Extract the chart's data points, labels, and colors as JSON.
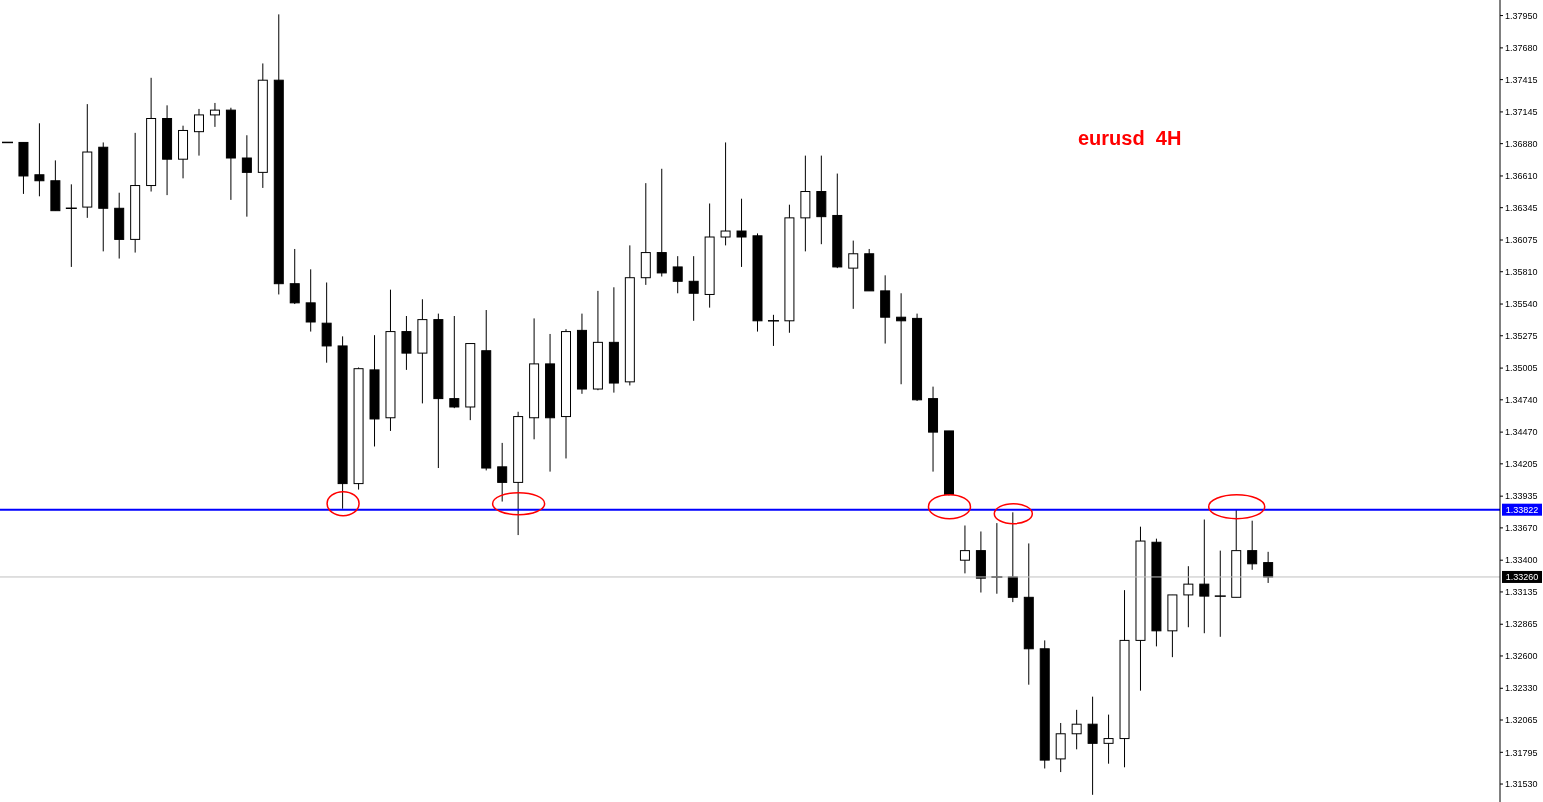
{
  "chart_data": {
    "type": "candlestick",
    "annotations": [
      "eurusd  4H"
    ],
    "categories": [
      null,
      null,
      null,
      null,
      null,
      null,
      null,
      null,
      null,
      null,
      null,
      null,
      null,
      null,
      null,
      null,
      null,
      null,
      null,
      null,
      null,
      null,
      null,
      null,
      null,
      null,
      null,
      null,
      null,
      null,
      null,
      null,
      null,
      null,
      null,
      null,
      null,
      null,
      null,
      null,
      null,
      null,
      null,
      null,
      null,
      null,
      null,
      null,
      null,
      null,
      null,
      null,
      null,
      null,
      null,
      null,
      null,
      null,
      null,
      null,
      null,
      null,
      null,
      null,
      null,
      null,
      null,
      null,
      null,
      null,
      null,
      null,
      null,
      null,
      null,
      null,
      null,
      null,
      null,
      null,
      null,
      null,
      null,
      null,
      null,
      null,
      null,
      null,
      null,
      null,
      null,
      null,
      null,
      null
    ],
    "ohlc": [
      [
        1.3689,
        1.3689,
        1.3689,
        1.3689
      ],
      [
        1.3689,
        1.3689,
        1.3646,
        1.3661
      ],
      [
        1.3662,
        1.3705,
        1.3644,
        1.3657
      ],
      [
        1.3657,
        1.3674,
        1.3632,
        1.3632
      ],
      [
        1.3633,
        1.3654,
        1.3585,
        1.3634
      ],
      [
        1.3635,
        1.3721,
        1.3626,
        1.3681
      ],
      [
        1.3685,
        1.3689,
        1.3598,
        1.3634
      ],
      [
        1.3634,
        1.3647,
        1.3592,
        1.3608
      ],
      [
        1.3608,
        1.3697,
        1.3597,
        1.3653
      ],
      [
        1.3653,
        1.3743,
        1.3648,
        1.3709
      ],
      [
        1.3709,
        1.372,
        1.3645,
        1.3675
      ],
      [
        1.3675,
        1.3703,
        1.3659,
        1.3699
      ],
      [
        1.3698,
        1.3717,
        1.3678,
        1.3712
      ],
      [
        1.3712,
        1.3722,
        1.3702,
        1.3716
      ],
      [
        1.3716,
        1.3718,
        1.3641,
        1.3676
      ],
      [
        1.3676,
        1.3695,
        1.3627,
        1.3664
      ],
      [
        1.3664,
        1.3755,
        1.3651,
        1.3741
      ],
      [
        1.3741,
        1.3796,
        1.3562,
        1.3571
      ],
      [
        1.3571,
        1.36,
        1.3554,
        1.3555
      ],
      [
        1.3555,
        1.3583,
        1.3531,
        1.3539
      ],
      [
        1.3538,
        1.3572,
        1.3505,
        1.3519
      ],
      [
        1.3519,
        1.3527,
        1.3383,
        1.3404
      ],
      [
        1.3404,
        1.3501,
        1.3399,
        1.35
      ],
      [
        1.3499,
        1.3528,
        1.3435,
        1.3458
      ],
      [
        1.3459,
        1.3566,
        1.3448,
        1.3531
      ],
      [
        1.3531,
        1.3544,
        1.3499,
        1.3513
      ],
      [
        1.3513,
        1.3558,
        1.3471,
        1.3541
      ],
      [
        1.3541,
        1.3546,
        1.3417,
        1.3475
      ],
      [
        1.3475,
        1.3544,
        1.3467,
        1.3468
      ],
      [
        1.3468,
        1.3521,
        1.3457,
        1.3521
      ],
      [
        1.3515,
        1.3549,
        1.3415,
        1.3417
      ],
      [
        1.3418,
        1.3438,
        1.3389,
        1.3405
      ],
      [
        1.3405,
        1.3464,
        1.3361,
        1.346
      ],
      [
        1.3459,
        1.3542,
        1.3441,
        1.3504
      ],
      [
        1.3504,
        1.3529,
        1.3414,
        1.3459
      ],
      [
        1.346,
        1.3533,
        1.3425,
        1.3531
      ],
      [
        1.3532,
        1.3546,
        1.3479,
        1.3483
      ],
      [
        1.3483,
        1.3565,
        1.3482,
        1.3522
      ],
      [
        1.3522,
        1.3568,
        1.348,
        1.3488
      ],
      [
        1.3489,
        1.3603,
        1.3486,
        1.3576
      ],
      [
        1.3576,
        1.3655,
        1.357,
        1.3597
      ],
      [
        1.3597,
        1.3667,
        1.3577,
        1.358
      ],
      [
        1.3585,
        1.3594,
        1.3563,
        1.3573
      ],
      [
        1.3573,
        1.3594,
        1.354,
        1.3563
      ],
      [
        1.3562,
        1.3638,
        1.3551,
        1.361
      ],
      [
        1.361,
        1.3689,
        1.3603,
        1.3615
      ],
      [
        1.3615,
        1.3642,
        1.3585,
        1.361
      ],
      [
        1.3611,
        1.3613,
        1.3531,
        1.354
      ],
      [
        1.354,
        1.3545,
        1.3519,
        1.354
      ],
      [
        1.354,
        1.3637,
        1.353,
        1.3626
      ],
      [
        1.3626,
        1.3678,
        1.3598,
        1.3648
      ],
      [
        1.3648,
        1.3678,
        1.3604,
        1.3627
      ],
      [
        1.3628,
        1.3663,
        1.3584,
        1.3585
      ],
      [
        1.3584,
        1.3607,
        1.355,
        1.3596
      ],
      [
        1.3596,
        1.36,
        1.3565,
        1.3565
      ],
      [
        1.3565,
        1.3578,
        1.3521,
        1.3543
      ],
      [
        1.3543,
        1.3563,
        1.3487,
        1.354
      ],
      [
        1.3542,
        1.3546,
        1.3473,
        1.3474
      ],
      [
        1.3475,
        1.3485,
        1.3414,
        1.3447
      ],
      [
        1.3448,
        1.3448,
        1.3394,
        1.3395
      ],
      [
        1.334,
        1.3369,
        1.3329,
        1.3348
      ],
      [
        1.3348,
        1.3364,
        1.3313,
        1.3325
      ],
      [
        1.3326,
        1.3371,
        1.3312,
        1.3326
      ],
      [
        1.3326,
        1.338,
        1.3305,
        1.3309
      ],
      [
        1.3309,
        1.3354,
        1.3236,
        1.3266
      ],
      [
        1.3266,
        1.3273,
        1.3166,
        1.3173
      ],
      [
        1.3174,
        1.3204,
        1.3163,
        1.3195
      ],
      [
        1.3195,
        1.3215,
        1.3182,
        1.3203
      ],
      [
        1.3203,
        1.3226,
        1.3144,
        1.3187
      ],
      [
        1.3187,
        1.3211,
        1.317,
        1.3191
      ],
      [
        1.3191,
        1.3315,
        1.3167,
        1.3273
      ],
      [
        1.3273,
        1.3368,
        1.3231,
        1.3356
      ],
      [
        1.3355,
        1.3358,
        1.3268,
        1.3281
      ],
      [
        1.3281,
        1.3311,
        1.3259,
        1.3311
      ],
      [
        1.3311,
        1.3335,
        1.3284,
        1.332
      ],
      [
        1.332,
        1.3374,
        1.3279,
        1.331
      ],
      [
        1.331,
        1.3348,
        1.3276,
        1.331
      ],
      [
        1.3309,
        1.3382,
        1.3309,
        1.3348
      ],
      [
        1.3348,
        1.3373,
        1.3332,
        1.3337
      ],
      [
        1.3338,
        1.3347,
        1.3321,
        1.3326
      ],
      null,
      null,
      null,
      null,
      null,
      null,
      null,
      null,
      null,
      null,
      null,
      null,
      null,
      null
    ],
    "color": "#000000",
    "ylim": [
      1.3138,
      1.3808
    ],
    "yticks": [
      {
        "value": 1.3795,
        "label": "1.37950"
      },
      {
        "value": 1.3768,
        "label": "1.37680"
      },
      {
        "value": 1.37415,
        "label": "1.37415"
      },
      {
        "value": 1.37145,
        "label": "1.37145"
      },
      {
        "value": 1.3688,
        "label": "1.36880"
      },
      {
        "value": 1.3661,
        "label": "1.36610"
      },
      {
        "value": 1.36345,
        "label": "1.36345"
      },
      {
        "value": 1.36075,
        "label": "1.36075"
      },
      {
        "value": 1.3581,
        "label": "1.35810"
      },
      {
        "value": 1.3554,
        "label": "1.35540"
      },
      {
        "value": 1.35275,
        "label": "1.35275"
      },
      {
        "value": 1.35005,
        "label": "1.35005"
      },
      {
        "value": 1.3474,
        "label": "1.34740"
      },
      {
        "value": 1.3447,
        "label": "1.34470"
      },
      {
        "value": 1.34205,
        "label": "1.34205"
      },
      {
        "value": 1.33935,
        "label": "1.33935"
      },
      {
        "value": 1.3367,
        "label": "1.33670"
      },
      {
        "value": 1.334,
        "label": "1.33400"
      },
      {
        "value": 1.33135,
        "label": "1.33135"
      },
      {
        "value": 1.32865,
        "label": "1.32865"
      },
      {
        "value": 1.326,
        "label": "1.32600"
      },
      {
        "value": 1.3233,
        "label": "1.32330"
      },
      {
        "value": 1.32065,
        "label": "1.32065"
      },
      {
        "value": 1.31795,
        "label": "1.31795"
      },
      {
        "value": 1.3153,
        "label": "1.31530"
      }
    ],
    "tick_labels": "y",
    "ref_lines": [
      {
        "axis": "y",
        "value": 1.33822,
        "label": "1.33822",
        "color": "#0000ff"
      },
      {
        "axis": "y",
        "value": 1.3326,
        "label": "1.33260",
        "color": "#c0c0c0"
      }
    ]
  }
}
